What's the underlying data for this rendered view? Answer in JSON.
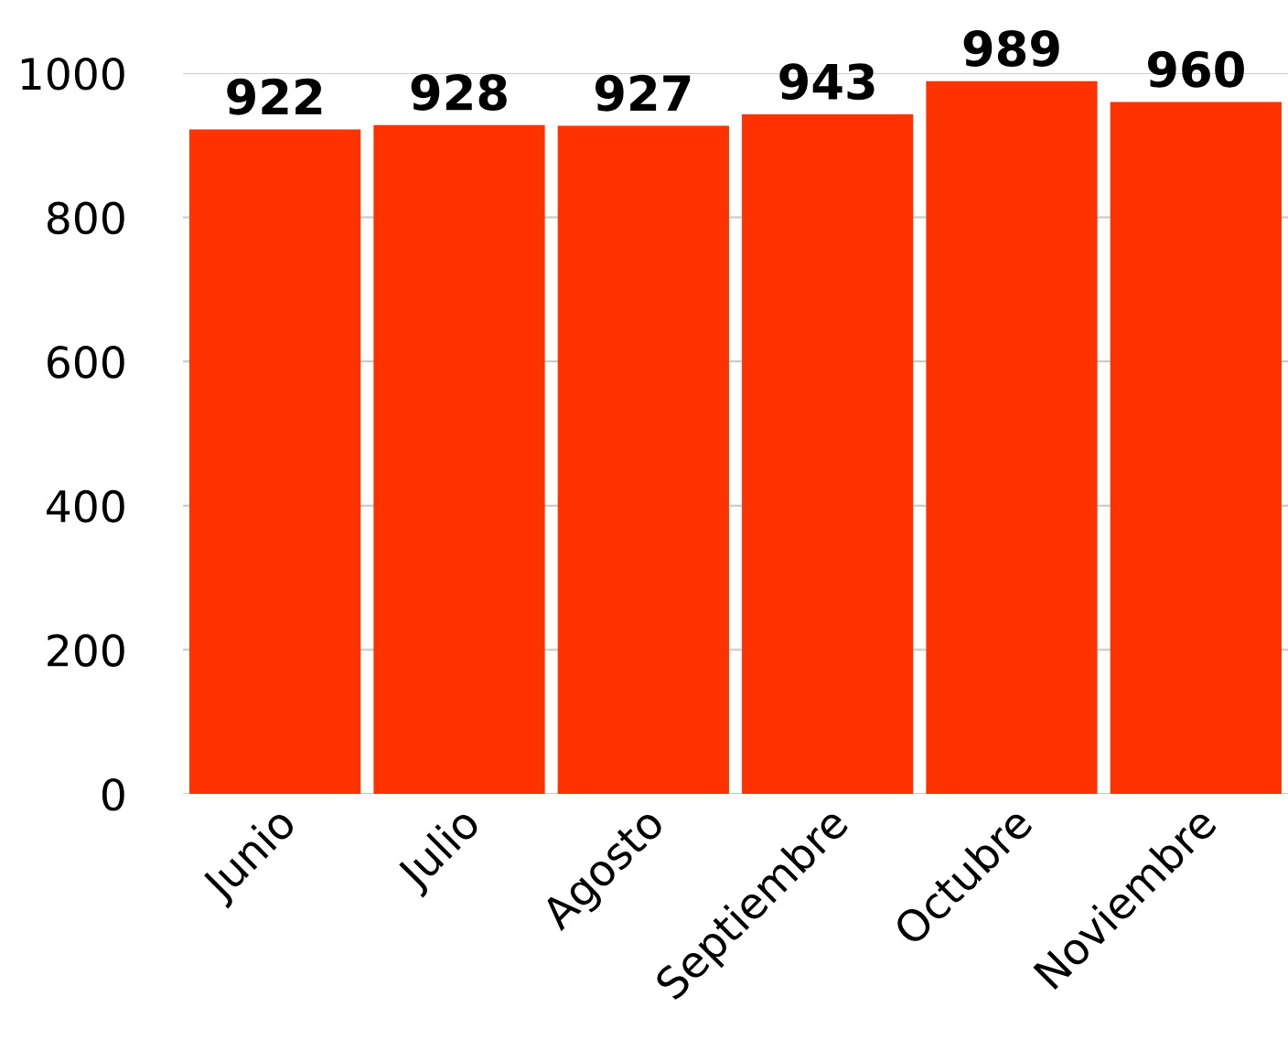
{
  "chart_data": {
    "type": "bar",
    "categories": [
      "Junio",
      "Julio",
      "Agosto",
      "Septiembre",
      "Octubre",
      "Noviembre"
    ],
    "values": [
      922,
      928,
      927,
      943,
      989,
      960
    ],
    "color": "#ff3300",
    "ylim": [
      0,
      1000
    ],
    "yticks": [
      0,
      200,
      400,
      600,
      800,
      1000
    ],
    "grid": "y",
    "data_labels": true,
    "legend": false
  }
}
